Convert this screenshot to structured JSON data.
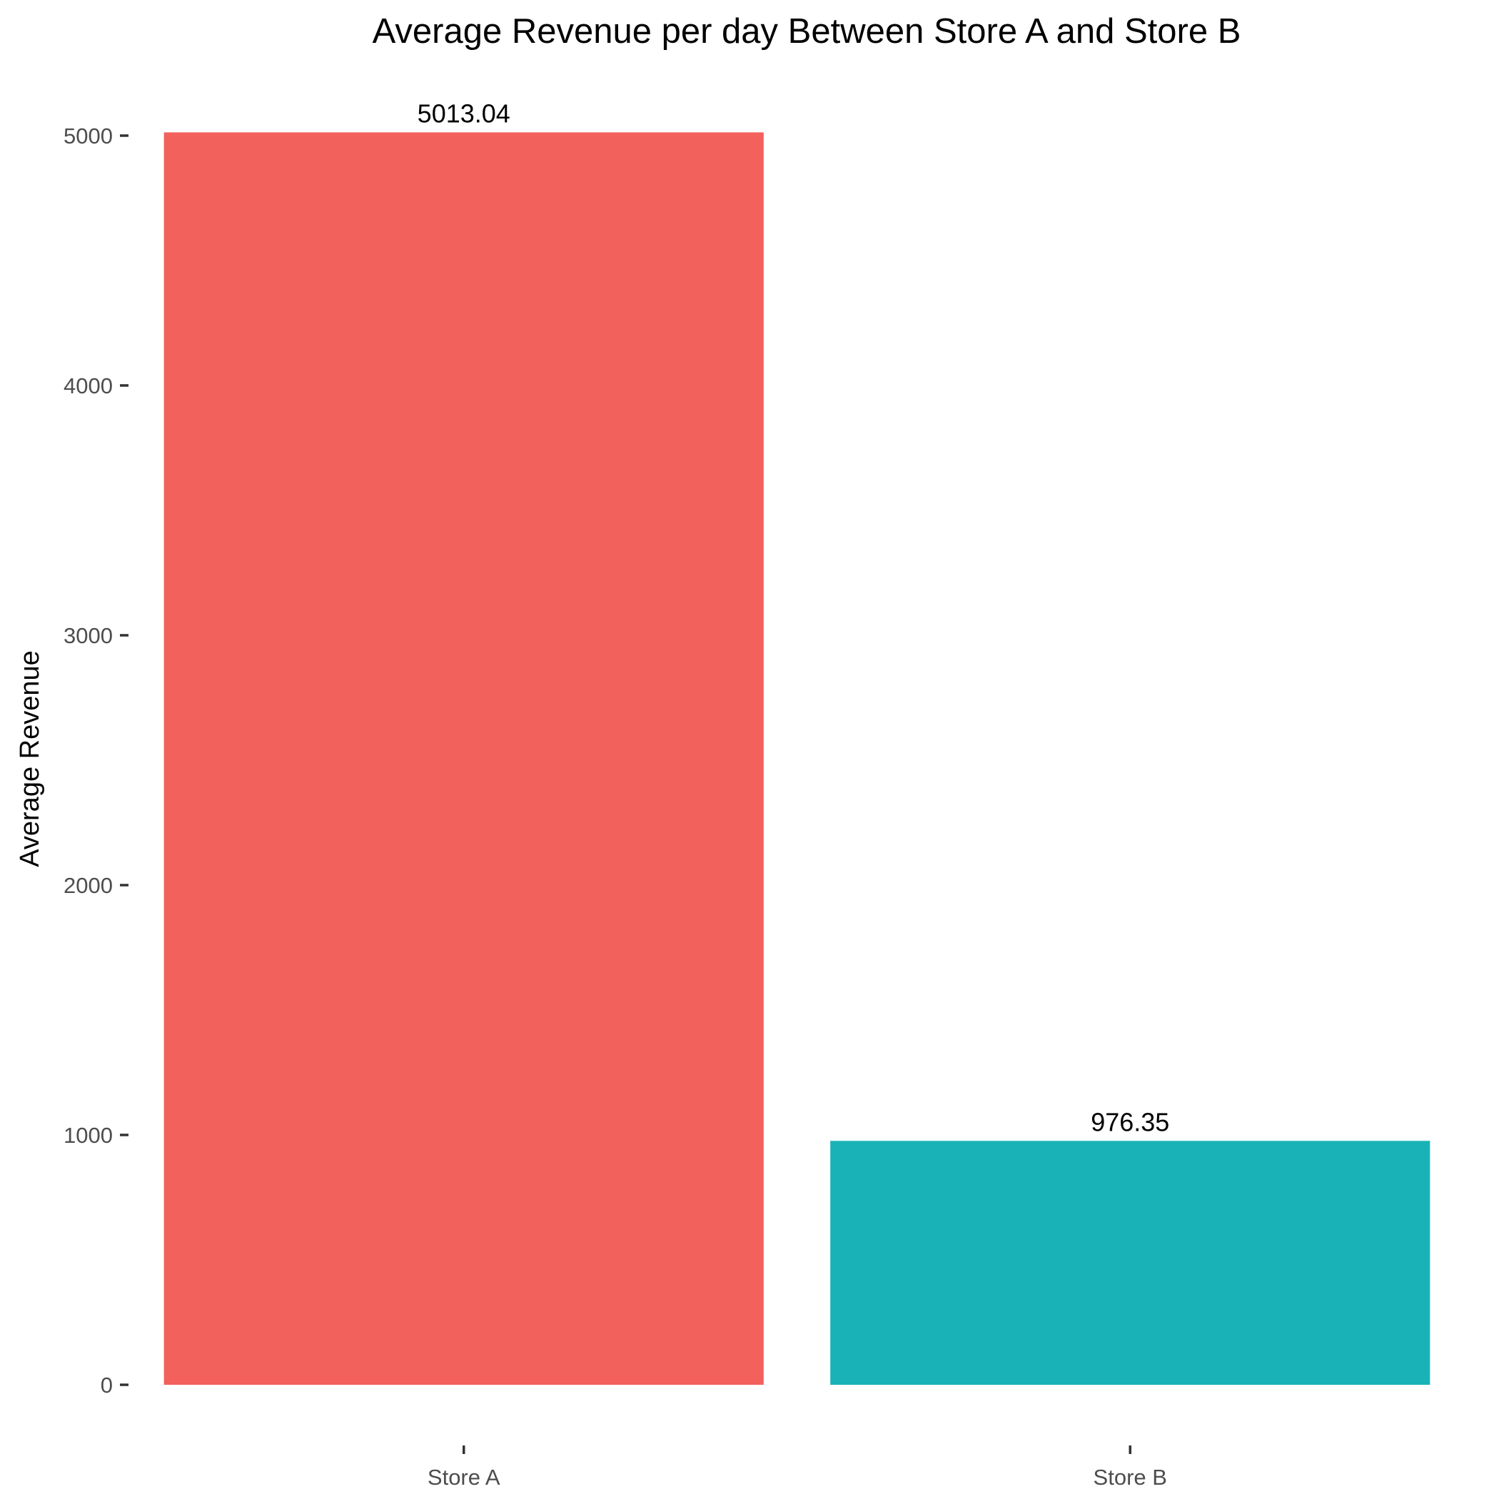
{
  "chart_data": {
    "type": "bar",
    "title": "Average Revenue per day Between Store A and Store B",
    "xlabel": "",
    "ylabel": "Average Revenue",
    "categories": [
      "Store A",
      "Store B"
    ],
    "values": [
      5013.04,
      976.35
    ],
    "value_labels": [
      "5013.04",
      "976.35"
    ],
    "colors": [
      "#F2615C",
      "#19B3B7"
    ],
    "ylim": [
      0,
      5000
    ],
    "yticks": [
      0,
      1000,
      2000,
      3000,
      4000,
      5000
    ],
    "ytick_labels": [
      "0",
      "1000",
      "2000",
      "3000",
      "4000",
      "5000"
    ],
    "grid": false,
    "legend": "none"
  }
}
